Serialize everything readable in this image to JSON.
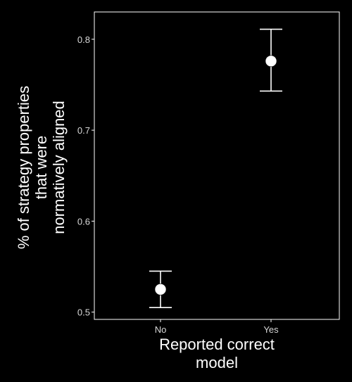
{
  "chart_data": {
    "type": "scatter",
    "subtype": "point-with-error-bars",
    "title": "",
    "xlabel_lines": [
      "Reported correct",
      "model"
    ],
    "ylabel_lines": [
      "% of strategy properties",
      "that were",
      "normatively aligned"
    ],
    "categories": [
      "No",
      "Yes"
    ],
    "values": [
      0.525,
      0.776
    ],
    "error_low": [
      0.505,
      0.743
    ],
    "error_high": [
      0.545,
      0.811
    ],
    "ylim": [
      0.492,
      0.83
    ],
    "yticks": [
      0.5,
      0.6,
      0.7,
      0.8
    ],
    "ytick_labels": [
      "0.5",
      "0.6",
      "0.7",
      "0.8"
    ],
    "grid": false,
    "legend": "none",
    "colors": {
      "background": "#000000",
      "panel_border": "#ffffff",
      "points": "#ffffff",
      "error_bars": "#ffffff",
      "tick_labels": "#d9d9d9",
      "axis_titles": "#ffffff"
    }
  }
}
